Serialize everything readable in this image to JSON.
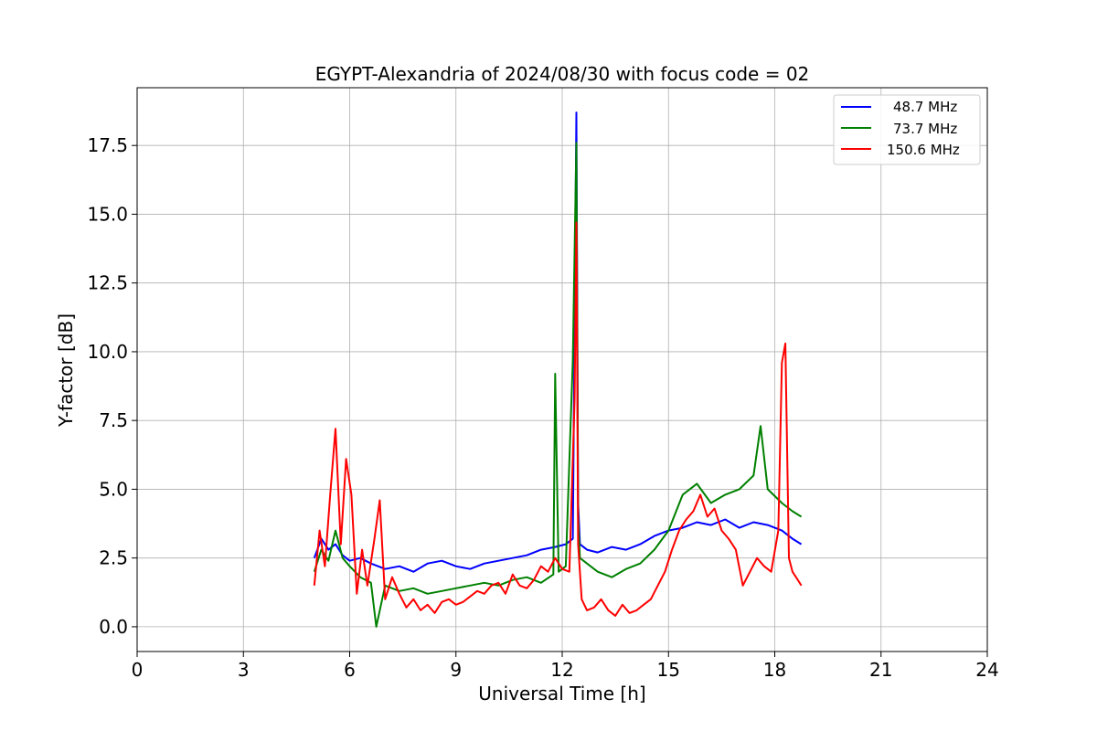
{
  "chart_data": {
    "type": "line",
    "title": "EGYPT-Alexandria of 2024/08/30 with focus code = 02",
    "xlabel": "Universal Time [h]",
    "ylabel": "Y-factor [dB]",
    "xlim": [
      0,
      24
    ],
    "ylim": [
      -0.9,
      19.6
    ],
    "xticks": [
      0,
      3,
      6,
      9,
      12,
      15,
      18,
      21,
      24
    ],
    "xtick_labels": [
      "0",
      "3",
      "6",
      "9",
      "12",
      "15",
      "18",
      "21",
      "24"
    ],
    "yticks": [
      0.0,
      2.5,
      5.0,
      7.5,
      10.0,
      12.5,
      15.0,
      17.5
    ],
    "ytick_labels": [
      "0.0",
      "2.5",
      "5.0",
      "7.5",
      "10.0",
      "12.5",
      "15.0",
      "17.5"
    ],
    "grid": true,
    "legend_position": "top-right",
    "series": [
      {
        "name": "48.7 MHz",
        "color": "#0000ff",
        "x": [
          5.0,
          5.2,
          5.4,
          5.6,
          5.8,
          6.0,
          6.3,
          6.6,
          7.0,
          7.4,
          7.8,
          8.2,
          8.6,
          9.0,
          9.4,
          9.8,
          10.2,
          10.6,
          11.0,
          11.4,
          11.8,
          12.1,
          12.3,
          12.4,
          12.45,
          12.5,
          12.7,
          13.0,
          13.4,
          13.8,
          14.2,
          14.6,
          15.0,
          15.4,
          15.8,
          16.2,
          16.6,
          17.0,
          17.4,
          17.8,
          18.2,
          18.5,
          18.75
        ],
        "y": [
          2.5,
          3.2,
          2.8,
          3.0,
          2.6,
          2.4,
          2.5,
          2.3,
          2.1,
          2.2,
          2.0,
          2.3,
          2.4,
          2.2,
          2.1,
          2.3,
          2.4,
          2.5,
          2.6,
          2.8,
          2.9,
          3.0,
          3.2,
          18.7,
          4.5,
          3.0,
          2.8,
          2.7,
          2.9,
          2.8,
          3.0,
          3.3,
          3.5,
          3.6,
          3.8,
          3.7,
          3.9,
          3.6,
          3.8,
          3.7,
          3.5,
          3.2,
          3.0
        ]
      },
      {
        "name": "73.7 MHz",
        "color": "#008000",
        "x": [
          5.0,
          5.2,
          5.4,
          5.6,
          5.8,
          6.0,
          6.3,
          6.6,
          6.75,
          7.0,
          7.4,
          7.8,
          8.2,
          8.6,
          9.0,
          9.4,
          9.8,
          10.2,
          10.6,
          11.0,
          11.4,
          11.75,
          11.8,
          11.9,
          12.1,
          12.3,
          12.4,
          12.45,
          12.5,
          12.7,
          13.0,
          13.4,
          13.8,
          14.2,
          14.6,
          15.0,
          15.4,
          15.8,
          16.2,
          16.6,
          17.0,
          17.4,
          17.6,
          17.8,
          18.2,
          18.5,
          18.75
        ],
        "y": [
          2.0,
          2.8,
          2.4,
          3.5,
          2.5,
          2.2,
          1.8,
          1.6,
          0.0,
          1.5,
          1.3,
          1.4,
          1.2,
          1.3,
          1.4,
          1.5,
          1.6,
          1.5,
          1.7,
          1.8,
          1.6,
          1.9,
          9.2,
          2.0,
          2.2,
          9.7,
          17.6,
          4.0,
          2.5,
          2.3,
          2.0,
          1.8,
          2.1,
          2.3,
          2.8,
          3.5,
          4.8,
          5.2,
          4.5,
          4.8,
          5.0,
          5.5,
          7.3,
          5.0,
          4.5,
          4.2,
          4.0
        ]
      },
      {
        "name": "150.6 MHz",
        "color": "#ff0000",
        "x": [
          5.0,
          5.15,
          5.3,
          5.45,
          5.6,
          5.75,
          5.9,
          6.05,
          6.2,
          6.35,
          6.5,
          6.7,
          6.85,
          7.0,
          7.2,
          7.4,
          7.6,
          7.8,
          8.0,
          8.2,
          8.4,
          8.6,
          8.8,
          9.0,
          9.2,
          9.4,
          9.6,
          9.8,
          10.0,
          10.2,
          10.4,
          10.6,
          10.8,
          11.0,
          11.2,
          11.4,
          11.6,
          11.8,
          12.0,
          12.2,
          12.35,
          12.4,
          12.45,
          12.55,
          12.7,
          12.9,
          13.1,
          13.3,
          13.5,
          13.7,
          13.9,
          14.1,
          14.3,
          14.5,
          14.7,
          14.9,
          15.1,
          15.3,
          15.5,
          15.7,
          15.9,
          16.1,
          16.3,
          16.5,
          16.7,
          16.9,
          17.1,
          17.3,
          17.5,
          17.7,
          17.9,
          18.1,
          18.2,
          18.3,
          18.4,
          18.5,
          18.6,
          18.75
        ],
        "y": [
          1.5,
          3.5,
          2.2,
          4.8,
          7.2,
          3.0,
          6.1,
          4.8,
          1.2,
          2.8,
          1.5,
          3.2,
          4.6,
          1.0,
          1.8,
          1.2,
          0.7,
          1.0,
          0.6,
          0.8,
          0.5,
          0.9,
          1.0,
          0.8,
          0.9,
          1.1,
          1.3,
          1.2,
          1.5,
          1.6,
          1.2,
          1.9,
          1.5,
          1.4,
          1.7,
          2.2,
          2.0,
          2.5,
          2.1,
          2.0,
          8.3,
          14.7,
          3.0,
          1.0,
          0.6,
          0.7,
          1.0,
          0.6,
          0.4,
          0.8,
          0.5,
          0.6,
          0.8,
          1.0,
          1.5,
          2.0,
          2.8,
          3.5,
          3.9,
          4.2,
          4.8,
          4.0,
          4.3,
          3.5,
          3.2,
          2.8,
          1.5,
          2.0,
          2.5,
          2.2,
          2.0,
          3.5,
          9.6,
          10.3,
          2.5,
          2.0,
          1.8,
          1.5
        ]
      }
    ]
  }
}
